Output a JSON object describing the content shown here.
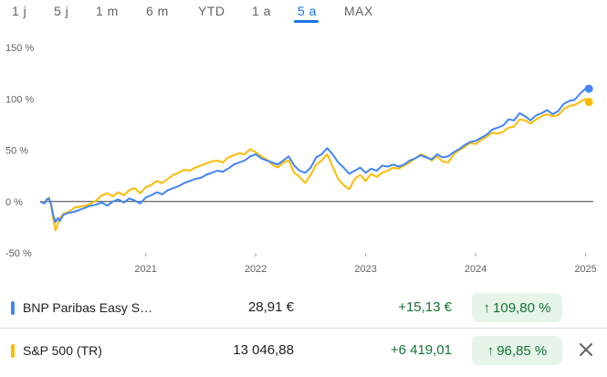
{
  "tabs": [
    {
      "label": "1 j",
      "active": false
    },
    {
      "label": "5 j",
      "active": false
    },
    {
      "label": "1 m",
      "active": false
    },
    {
      "label": "6 m",
      "active": false
    },
    {
      "label": "YTD",
      "active": false
    },
    {
      "label": "1 a",
      "active": false
    },
    {
      "label": "5 a",
      "active": true
    },
    {
      "label": "MAX",
      "active": false
    }
  ],
  "chart_data": {
    "type": "line",
    "y_ticks": [
      "150 %",
      "100 %",
      "50 %",
      "0 %",
      "-50 %"
    ],
    "y_tick_values": [
      150,
      100,
      50,
      0,
      -50
    ],
    "x_ticks": [
      "2021",
      "2022",
      "2023",
      "2024",
      "2025"
    ],
    "x_tick_values": [
      2021,
      2022,
      2023,
      2024,
      2025
    ],
    "ylim": [
      -50,
      150
    ],
    "xlim": [
      2020.04,
      2025.07
    ],
    "baseline": 0,
    "grid": false,
    "series": [
      {
        "name": "BNP Paribas Easy S…",
        "color": "#4285f4",
        "points": [
          [
            2020.04,
            0
          ],
          [
            2020.08,
            -2
          ],
          [
            2020.1,
            2
          ],
          [
            2020.12,
            3
          ],
          [
            2020.14,
            -3
          ],
          [
            2020.16,
            -14
          ],
          [
            2020.18,
            -20
          ],
          [
            2020.2,
            -16
          ],
          [
            2020.22,
            -19
          ],
          [
            2020.25,
            -13
          ],
          [
            2020.3,
            -11
          ],
          [
            2020.35,
            -10
          ],
          [
            2020.4,
            -8
          ],
          [
            2020.45,
            -6
          ],
          [
            2020.5,
            -4
          ],
          [
            2020.55,
            -3
          ],
          [
            2020.6,
            -1
          ],
          [
            2020.65,
            -4
          ],
          [
            2020.7,
            0
          ],
          [
            2020.75,
            2
          ],
          [
            2020.8,
            -1
          ],
          [
            2020.85,
            3
          ],
          [
            2020.9,
            1
          ],
          [
            2020.95,
            -2
          ],
          [
            2021.0,
            4
          ],
          [
            2021.05,
            6
          ],
          [
            2021.1,
            9
          ],
          [
            2021.15,
            7
          ],
          [
            2021.2,
            11
          ],
          [
            2021.25,
            13
          ],
          [
            2021.3,
            15
          ],
          [
            2021.35,
            18
          ],
          [
            2021.4,
            20
          ],
          [
            2021.45,
            22
          ],
          [
            2021.5,
            23
          ],
          [
            2021.55,
            26
          ],
          [
            2021.6,
            28
          ],
          [
            2021.65,
            30
          ],
          [
            2021.7,
            29
          ],
          [
            2021.75,
            32
          ],
          [
            2021.8,
            36
          ],
          [
            2021.85,
            38
          ],
          [
            2021.9,
            40
          ],
          [
            2021.95,
            44
          ],
          [
            2022.0,
            46
          ],
          [
            2022.05,
            42
          ],
          [
            2022.1,
            40
          ],
          [
            2022.15,
            38
          ],
          [
            2022.2,
            36
          ],
          [
            2022.25,
            40
          ],
          [
            2022.3,
            44
          ],
          [
            2022.35,
            35
          ],
          [
            2022.4,
            30
          ],
          [
            2022.45,
            28
          ],
          [
            2022.5,
            33
          ],
          [
            2022.55,
            43
          ],
          [
            2022.6,
            46
          ],
          [
            2022.65,
            52
          ],
          [
            2022.7,
            46
          ],
          [
            2022.75,
            38
          ],
          [
            2022.8,
            33
          ],
          [
            2022.85,
            27
          ],
          [
            2022.9,
            30
          ],
          [
            2022.95,
            33
          ],
          [
            2023.0,
            28
          ],
          [
            2023.05,
            32
          ],
          [
            2023.1,
            30
          ],
          [
            2023.15,
            35
          ],
          [
            2023.2,
            34
          ],
          [
            2023.25,
            36
          ],
          [
            2023.3,
            34
          ],
          [
            2023.35,
            36
          ],
          [
            2023.4,
            40
          ],
          [
            2023.45,
            42
          ],
          [
            2023.5,
            45
          ],
          [
            2023.55,
            43
          ],
          [
            2023.6,
            41
          ],
          [
            2023.65,
            46
          ],
          [
            2023.7,
            43
          ],
          [
            2023.75,
            44
          ],
          [
            2023.8,
            48
          ],
          [
            2023.85,
            51
          ],
          [
            2023.9,
            55
          ],
          [
            2023.95,
            58
          ],
          [
            2024.0,
            59
          ],
          [
            2024.05,
            62
          ],
          [
            2024.1,
            65
          ],
          [
            2024.15,
            70
          ],
          [
            2024.2,
            72
          ],
          [
            2024.25,
            74
          ],
          [
            2024.3,
            80
          ],
          [
            2024.35,
            79
          ],
          [
            2024.4,
            86
          ],
          [
            2024.45,
            83
          ],
          [
            2024.5,
            79
          ],
          [
            2024.55,
            84
          ],
          [
            2024.6,
            86
          ],
          [
            2024.65,
            89
          ],
          [
            2024.7,
            85
          ],
          [
            2024.75,
            88
          ],
          [
            2024.8,
            95
          ],
          [
            2024.85,
            98
          ],
          [
            2024.9,
            99
          ],
          [
            2024.95,
            105
          ],
          [
            2025.0,
            110
          ],
          [
            2025.03,
            109.8
          ]
        ]
      },
      {
        "name": "S&P 500 (TR)",
        "color": "#fbbc04",
        "points": [
          [
            2020.04,
            0
          ],
          [
            2020.08,
            -1
          ],
          [
            2020.1,
            2
          ],
          [
            2020.12,
            4
          ],
          [
            2020.14,
            -4
          ],
          [
            2020.16,
            -18
          ],
          [
            2020.18,
            -28
          ],
          [
            2020.2,
            -22
          ],
          [
            2020.22,
            -16
          ],
          [
            2020.25,
            -12
          ],
          [
            2020.3,
            -10
          ],
          [
            2020.35,
            -6
          ],
          [
            2020.4,
            -5
          ],
          [
            2020.45,
            -4
          ],
          [
            2020.5,
            -2
          ],
          [
            2020.55,
            1
          ],
          [
            2020.6,
            6
          ],
          [
            2020.65,
            8
          ],
          [
            2020.7,
            5
          ],
          [
            2020.75,
            9
          ],
          [
            2020.8,
            6
          ],
          [
            2020.85,
            11
          ],
          [
            2020.9,
            13
          ],
          [
            2020.95,
            8
          ],
          [
            2021.0,
            14
          ],
          [
            2021.05,
            16
          ],
          [
            2021.1,
            20
          ],
          [
            2021.15,
            18
          ],
          [
            2021.2,
            22
          ],
          [
            2021.25,
            26
          ],
          [
            2021.3,
            28
          ],
          [
            2021.35,
            31
          ],
          [
            2021.4,
            30
          ],
          [
            2021.45,
            33
          ],
          [
            2021.5,
            35
          ],
          [
            2021.55,
            37
          ],
          [
            2021.6,
            39
          ],
          [
            2021.65,
            40
          ],
          [
            2021.7,
            38
          ],
          [
            2021.75,
            43
          ],
          [
            2021.8,
            45
          ],
          [
            2021.85,
            47
          ],
          [
            2021.9,
            46
          ],
          [
            2021.95,
            51
          ],
          [
            2022.0,
            48
          ],
          [
            2022.05,
            44
          ],
          [
            2022.1,
            41
          ],
          [
            2022.15,
            36
          ],
          [
            2022.2,
            33
          ],
          [
            2022.25,
            38
          ],
          [
            2022.3,
            40
          ],
          [
            2022.35,
            28
          ],
          [
            2022.4,
            24
          ],
          [
            2022.45,
            18
          ],
          [
            2022.5,
            26
          ],
          [
            2022.55,
            36
          ],
          [
            2022.6,
            40
          ],
          [
            2022.65,
            46
          ],
          [
            2022.7,
            34
          ],
          [
            2022.75,
            22
          ],
          [
            2022.8,
            16
          ],
          [
            2022.85,
            12
          ],
          [
            2022.9,
            22
          ],
          [
            2022.95,
            26
          ],
          [
            2023.0,
            20
          ],
          [
            2023.05,
            27
          ],
          [
            2023.1,
            24
          ],
          [
            2023.15,
            28
          ],
          [
            2023.2,
            30
          ],
          [
            2023.25,
            33
          ],
          [
            2023.3,
            32
          ],
          [
            2023.35,
            35
          ],
          [
            2023.4,
            38
          ],
          [
            2023.45,
            42
          ],
          [
            2023.5,
            46
          ],
          [
            2023.55,
            44
          ],
          [
            2023.6,
            40
          ],
          [
            2023.65,
            44
          ],
          [
            2023.7,
            39
          ],
          [
            2023.75,
            38
          ],
          [
            2023.8,
            46
          ],
          [
            2023.85,
            50
          ],
          [
            2023.9,
            53
          ],
          [
            2023.95,
            57
          ],
          [
            2024.0,
            56
          ],
          [
            2024.05,
            60
          ],
          [
            2024.1,
            63
          ],
          [
            2024.15,
            67
          ],
          [
            2024.2,
            66
          ],
          [
            2024.25,
            68
          ],
          [
            2024.3,
            72
          ],
          [
            2024.35,
            73
          ],
          [
            2024.4,
            80
          ],
          [
            2024.45,
            79
          ],
          [
            2024.5,
            76
          ],
          [
            2024.55,
            80
          ],
          [
            2024.6,
            83
          ],
          [
            2024.65,
            85
          ],
          [
            2024.7,
            83
          ],
          [
            2024.75,
            84
          ],
          [
            2024.8,
            90
          ],
          [
            2024.85,
            93
          ],
          [
            2024.9,
            94
          ],
          [
            2024.95,
            97
          ],
          [
            2025.0,
            100
          ],
          [
            2025.03,
            96.85
          ]
        ]
      }
    ]
  },
  "legend": [
    {
      "name": "BNP Paribas Easy S…",
      "color": "#4285f4",
      "price": "28,91 €",
      "change": "+15,13 €",
      "pct": "109,80 %",
      "pct_arrow": "↑",
      "closable": false
    },
    {
      "name": "S&P 500 (TR)",
      "color": "#fbbc04",
      "price": "13 046,88",
      "change": "+6 419,01",
      "pct": "96,85 %",
      "pct_arrow": "↑",
      "closable": true
    }
  ]
}
